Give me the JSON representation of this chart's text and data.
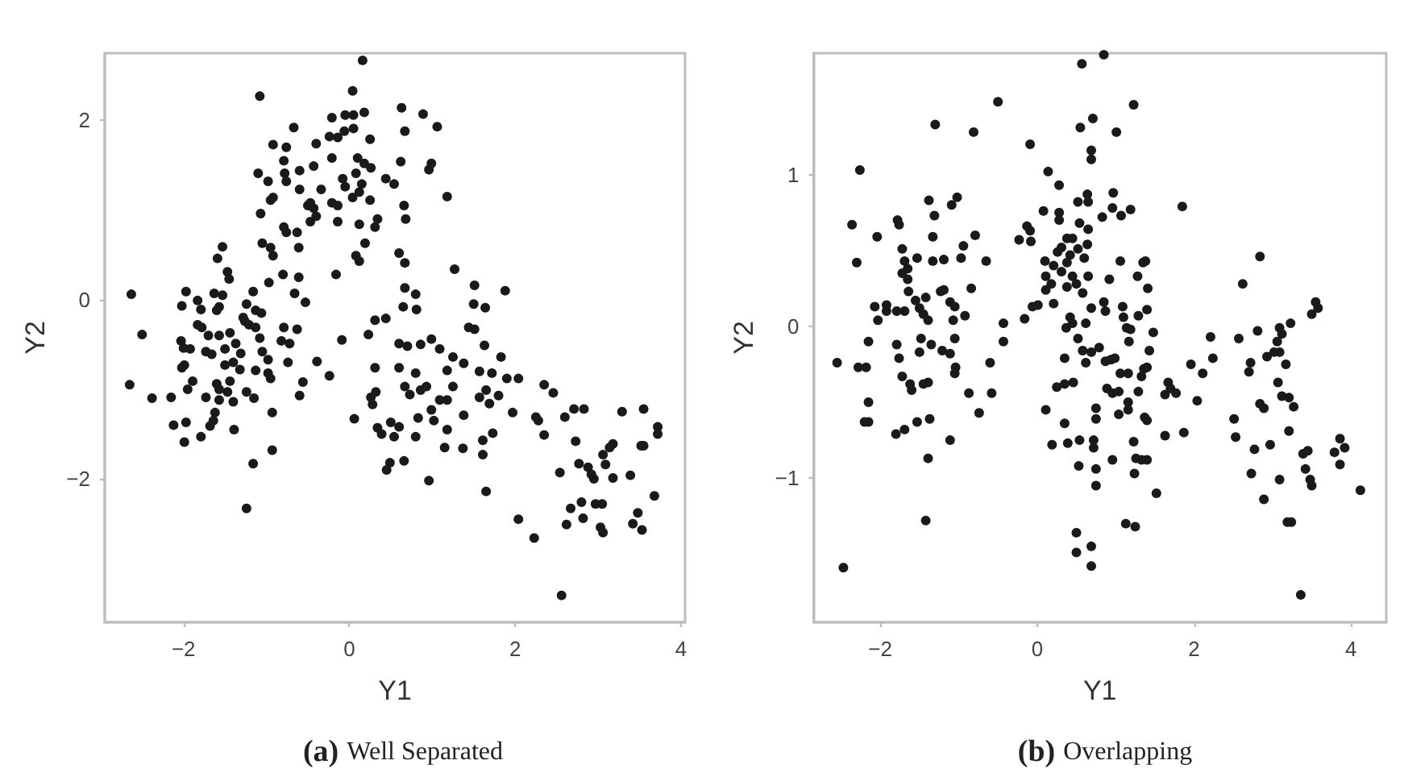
{
  "chart_data": [
    {
      "type": "scatter",
      "title": "(a) Well Separated",
      "xlabel": "Y1",
      "ylabel": "Y2",
      "color": "#1a1a1a",
      "marker": "circle",
      "grid": false,
      "xlim": [
        -2.95,
        4.05
      ],
      "xticks": [
        {
          "value": -2,
          "label": "−2"
        },
        0,
        2,
        4
      ],
      "ylim": [
        -3.6,
        2.75
      ],
      "yticks": [
        {
          "value": -2,
          "label": "−2"
        },
        0,
        2
      ],
      "x": [
        0.16,
        -1.08,
        0.04,
        -0.67,
        -0.92,
        -0.76,
        -0.4,
        -0.21,
        -0.05,
        0.05,
        -0.06,
        0.05,
        -0.24,
        -0.14,
        0.18,
        0.25,
        -1.1,
        -0.98,
        -0.79,
        -0.78,
        -0.76,
        -0.6,
        -0.43,
        -0.21,
        0.1,
        0.18,
        0.26,
        -0.95,
        -0.92,
        -0.6,
        -0.34,
        -0.08,
        -0.05,
        0.08,
        0.15,
        0.12,
        -0.47,
        -0.43,
        -0.5,
        -0.21,
        -0.14,
        0.04,
        0.25,
        0.44,
        0.54,
        -1.07,
        -0.79,
        -0.76,
        -0.63,
        -0.47,
        -0.4,
        -0.14,
        0.12,
        0.34,
        0.31,
        -1.05,
        -0.95,
        -0.92,
        -0.61,
        0.19,
        0.08,
        0.12,
        -0.16,
        -1.53,
        -1.59,
        -1.47,
        -1.45,
        -0.8,
        -0.61,
        -0.97,
        -2.63,
        -1.97,
        -2.02,
        -1.83,
        -1.79,
        -1.63,
        -1.53,
        -1.57,
        -1.6,
        -1.16,
        -0.66,
        -0.53,
        -1.24,
        -1.13,
        -1.06,
        -1.28,
        -1.26,
        -1.83,
        -1.78,
        -2.03,
        -2.0,
        -1.92,
        -1.7,
        -1.57,
        -1.44,
        -1.21,
        -1.13,
        -1.08,
        -0.82,
        -0.79,
        -0.72,
        -0.63,
        -2.5,
        -1.73,
        -1.66,
        -1.5,
        -1.37,
        -1.31,
        -1.05,
        -0.98,
        -1.99,
        -2.02,
        -1.5,
        -1.4,
        -1.32,
        -1.13,
        -0.98,
        -0.95,
        -0.74,
        -0.39,
        -0.24,
        -0.09,
        -2.65,
        -2.38,
        -2.15,
        -1.89,
        -1.95,
        -1.6,
        -1.57,
        -1.44,
        -1.47,
        -1.73,
        -1.57,
        -1.4,
        -1.24,
        -1.15,
        -0.56,
        -0.6,
        -1.62,
        -1.64,
        -0.93,
        -2.12,
        -1.97,
        -1.68,
        -1.39,
        -1.99,
        -1.79,
        0.06,
        -0.93,
        -1.16,
        -1.24,
        0.31,
        0.44,
        0.23,
        0.31,
        0.32,
        0.26,
        0.28,
        0.34,
        0.39,
        0.5,
        0.54,
        0.49,
        0.45,
        0.63,
        0.89,
        1.06,
        0.67,
        0.62,
        0.99,
        0.96,
        1.18,
        0.66,
        0.68,
        0.6,
        0.67,
        1.27,
        0.67,
        0.8,
        0.65,
        0.81,
        1.51,
        1.5,
        1.64,
        1.88,
        1.44,
        1.51,
        0.6,
        0.7,
        0.86,
        0.99,
        1.09,
        1.63,
        1.25,
        1.38,
        1.83,
        0.6,
        0.8,
        1.18,
        1.57,
        1.72,
        1.9,
        2.04,
        2.35,
        2.46,
        0.67,
        0.86,
        0.93,
        1.25,
        0.73,
        1.09,
        1.18,
        1.57,
        1.65,
        0.99,
        1.38,
        1.69,
        1.8,
        0.83,
        1.02,
        1.18,
        1.73,
        1.97,
        2.25,
        2.28,
        2.71,
        2.83,
        2.6,
        3.29,
        3.55,
        3.72,
        3.72,
        0.6,
        0.8,
        1.15,
        1.37,
        1.61,
        1.61,
        0.66,
        2.35,
        2.73,
        3.18,
        3.14,
        3.06,
        3.09,
        2.77,
        2.88,
        2.95,
        2.92,
        2.54,
        3.18,
        3.39,
        3.52,
        3.55,
        0.96,
        1.65,
        3.68,
        2.8,
        2.67,
        2.62,
        2.82,
        2.97,
        3.05,
        3.03,
        3.06,
        3.48,
        3.42,
        3.53,
        2.04,
        2.23,
        2.56
      ],
      "values": [
        2.67,
        2.27,
        2.33,
        1.92,
        1.73,
        1.7,
        1.74,
        2.03,
        2.06,
        2.06,
        1.88,
        1.91,
        1.82,
        1.81,
        2.09,
        1.79,
        1.41,
        1.32,
        1.55,
        1.41,
        1.32,
        1.44,
        1.49,
        1.58,
        1.58,
        1.52,
        1.47,
        1.11,
        1.14,
        1.23,
        1.23,
        1.35,
        1.26,
        1.41,
        1.29,
        1.2,
        1.08,
        1.02,
        1.05,
        1.08,
        1.05,
        1.14,
        1.11,
        1.35,
        1.29,
        0.96,
        0.81,
        0.75,
        0.75,
        0.87,
        0.93,
        0.87,
        0.84,
        0.9,
        0.81,
        0.63,
        0.58,
        0.49,
        0.58,
        0.63,
        0.49,
        0.43,
        0.28,
        0.59,
        0.46,
        0.31,
        0.23,
        0.28,
        0.25,
        0.19,
        0.06,
        0.09,
        -0.07,
        -0.01,
        -0.11,
        0.07,
        0.05,
        -0.08,
        -0.12,
        0.09,
        0.07,
        -0.03,
        -0.05,
        -0.12,
        -0.15,
        -0.2,
        -0.24,
        -0.28,
        -0.31,
        -0.46,
        -0.54,
        -0.55,
        -0.4,
        -0.4,
        -0.37,
        -0.28,
        -0.31,
        -0.43,
        -0.46,
        -0.31,
        -0.49,
        -0.33,
        -0.39,
        -0.58,
        -0.61,
        -0.55,
        -0.49,
        -0.6,
        -0.58,
        -0.67,
        -0.73,
        -0.76,
        -0.73,
        -0.7,
        -0.78,
        -0.79,
        -0.82,
        -0.88,
        -0.7,
        -0.69,
        -0.85,
        -0.45,
        -0.95,
        -1.1,
        -1.09,
        -0.91,
        -1.0,
        -0.94,
        -1.0,
        -0.91,
        -1.03,
        -1.09,
        -1.12,
        -1.14,
        -1.03,
        -1.1,
        -0.92,
        -1.07,
        -1.26,
        -1.35,
        -1.26,
        -1.4,
        -1.37,
        -1.41,
        -1.45,
        -1.59,
        -1.53,
        -1.33,
        -1.68,
        -1.83,
        -2.33,
        -0.23,
        -0.21,
        -0.39,
        -0.76,
        -1.03,
        -1.09,
        -1.17,
        -1.43,
        -1.5,
        -1.37,
        -1.53,
        -1.82,
        -1.9,
        2.14,
        2.07,
        1.93,
        1.88,
        1.54,
        1.52,
        1.45,
        1.15,
        1.05,
        0.9,
        0.52,
        0.41,
        0.34,
        0.13,
        0.06,
        -0.08,
        -0.11,
        0.16,
        -0.05,
        -0.09,
        0.1,
        -0.31,
        -0.33,
        -0.49,
        -0.52,
        -0.5,
        -0.44,
        -0.55,
        -0.51,
        -0.64,
        -0.71,
        -0.64,
        -0.76,
        -0.82,
        -0.79,
        -0.8,
        -0.82,
        -0.88,
        -0.88,
        -0.95,
        -1.04,
        -0.97,
        -1.01,
        -0.97,
        -0.97,
        -1.06,
        -1.12,
        -1.12,
        -1.09,
        -1.01,
        -1.23,
        -1.29,
        -1.16,
        -1.07,
        -1.32,
        -1.35,
        -1.45,
        -1.49,
        -1.26,
        -1.31,
        -1.35,
        -1.22,
        -1.22,
        -1.31,
        -1.25,
        -1.22,
        -1.42,
        -1.5,
        -1.42,
        -1.53,
        -1.65,
        -1.66,
        -1.57,
        -1.73,
        -1.8,
        -1.51,
        -1.58,
        -1.61,
        -1.65,
        -1.73,
        -1.84,
        -1.83,
        -1.87,
        -2.0,
        -1.95,
        -1.93,
        -1.99,
        -1.96,
        -1.63,
        -1.63,
        -2.02,
        -2.14,
        -2.19,
        -2.26,
        -2.33,
        -2.51,
        -2.44,
        -2.28,
        -2.28,
        -2.54,
        -2.6,
        -2.38,
        -2.5,
        -2.57,
        -2.45,
        -2.66,
        -3.3
      ]
    },
    {
      "type": "scatter",
      "title": "(b) Overlapping",
      "xlabel": "Y1",
      "ylabel": "Y2",
      "color": "#1a1a1a",
      "marker": "circle",
      "grid": false,
      "xlim": [
        -2.85,
        4.45
      ],
      "xticks": [
        {
          "value": -2,
          "label": "−2"
        },
        0,
        2,
        4
      ],
      "ylim": [
        -1.95,
        1.8
      ],
      "yticks": [
        {
          "value": -1,
          "label": "−1"
        },
        0,
        1
      ],
      "x": [
        0.57,
        -0.5,
        -1.3,
        -0.81,
        0.71,
        -0.09,
        0.55,
        0.69,
        0.69,
        -2.26,
        0.14,
        0.28,
        -1.38,
        -1.02,
        -1.09,
        0.64,
        0.52,
        0.65,
        -2.36,
        -1.78,
        -1.76,
        -1.31,
        0.08,
        0.28,
        0.28,
        -2.04,
        -1.33,
        -0.79,
        -0.13,
        -0.09,
        0.54,
        0.65,
        -2.3,
        -0.23,
        -0.08,
        -1.72,
        -1.69,
        -1.53,
        -1.33,
        -1.19,
        -0.97,
        -0.94,
        -0.65,
        0.38,
        0.45,
        0.64,
        0.26,
        0.31,
        0.42,
        0.52,
        0.1,
        0.21,
        0.38,
        0.6,
        -1.65,
        -1.72,
        -1.65,
        0.11,
        0.18,
        0.31,
        0.45,
        0.5,
        -1.64,
        -1.23,
        -1.19,
        -0.84,
        0.11,
        0.38,
        0.58,
        0.65,
        -2.07,
        -1.92,
        -1.79,
        -1.69,
        -1.55,
        -1.42,
        -1.5,
        -1.45,
        -1.39,
        -1.11,
        -1.05,
        -2.03,
        -1.92,
        -1.07,
        -0.92,
        -0.43,
        -0.16,
        -0.06,
        0.01,
        0.21,
        0.42,
        0.45,
        0.62,
        0.69,
        0.37,
        -2.15,
        -1.79,
        -1.76,
        -1.48,
        -1.5,
        -1.35,
        -1.21,
        -1.11,
        -1.05,
        -1.04,
        -1.05,
        -0.43,
        0.52,
        0.58,
        0.62,
        0.69,
        -2.55,
        -2.28,
        -2.18,
        -0.6,
        0.35,
        -1.72,
        -1.62,
        -1.6,
        -1.45,
        -1.39,
        0.25,
        0.35,
        0.46,
        -0.87,
        -0.58,
        -2.15,
        -0.74,
        0.11,
        -2.2,
        -2.15,
        -1.8,
        -1.69,
        -1.53,
        -1.37,
        0.35,
        0.75,
        0.75,
        -1.11,
        0.19,
        0.39,
        0.54,
        0.72,
        0.72,
        -1.39,
        0.53,
        0.75,
        0.75,
        -1.42,
        0.5,
        0.69,
        0.5,
        0.69,
        -2.47,
        0.85,
        1.23,
        1.01,
        0.97,
        0.96,
        1.07,
        1.19,
        0.83,
        1.85,
        2.84,
        1.06,
        0.92,
        1.28,
        1.35,
        1.38,
        1.41,
        2.62,
        0.85,
        0.87,
        1.09,
        1.1,
        1.19,
        1.14,
        1.29,
        1.4,
        1.48,
        1.17,
        3.55,
        3.58,
        3.5,
        3.23,
        3.09,
        3.12,
        3.06,
        2.81,
        2.57,
        2.21,
        0.79,
        0.87,
        0.94,
        0.99,
        1.43,
        1.96,
        2.11,
        2.24,
        2.72,
        2.7,
        2.93,
        3.02,
        3.09,
        3.17,
        3.07,
        1.06,
        1.16,
        1.33,
        1.36,
        1.4,
        0.89,
        0.96,
        1.04,
        1.29,
        1.67,
        1.7,
        1.77,
        1.63,
        2.04,
        1.16,
        1.16,
        1.04,
        1.37,
        1.4,
        3.12,
        3.21,
        3.27,
        2.84,
        2.89,
        2.51,
        2.53,
        1.63,
        1.87,
        3.21,
        1.23,
        1.26,
        1.33,
        1.4,
        0.96,
        2.77,
        2.97,
        3.39,
        3.45,
        3.86,
        3.92,
        3.79,
        3.86,
        1.24,
        2.73,
        2.89,
        3.09,
        3.42,
        3.48,
        3.5,
        4.12,
        1.52,
        3.19,
        3.24,
        1.13,
        1.25,
        3.36
      ],
      "values": [
        1.73,
        1.48,
        1.33,
        1.28,
        1.37,
        1.2,
        1.31,
        1.16,
        1.1,
        1.03,
        1.02,
        0.93,
        0.83,
        0.85,
        0.8,
        0.87,
        0.82,
        0.82,
        0.67,
        0.7,
        0.67,
        0.73,
        0.76,
        0.75,
        0.7,
        0.59,
        0.59,
        0.6,
        0.66,
        0.63,
        0.68,
        0.64,
        0.42,
        0.57,
        0.56,
        0.51,
        0.43,
        0.45,
        0.43,
        0.44,
        0.45,
        0.53,
        0.43,
        0.58,
        0.58,
        0.54,
        0.49,
        0.52,
        0.47,
        0.51,
        0.43,
        0.4,
        0.42,
        0.45,
        0.38,
        0.35,
        0.31,
        0.33,
        0.28,
        0.36,
        0.33,
        0.28,
        0.23,
        0.23,
        0.24,
        0.25,
        0.24,
        0.26,
        0.22,
        0.33,
        0.13,
        0.14,
        0.1,
        0.1,
        0.17,
        0.19,
        0.12,
        0.08,
        0.04,
        0.16,
        0.13,
        0.04,
        0.1,
        0.04,
        0.07,
        0.02,
        0.05,
        0.13,
        0.14,
        0.15,
        0.06,
        0.02,
        0.02,
        0.12,
        -0.01,
        -0.1,
        -0.12,
        -0.21,
        -0.08,
        -0.17,
        -0.12,
        -0.16,
        -0.18,
        -0.08,
        -0.27,
        -0.31,
        -0.1,
        -0.08,
        -0.16,
        -0.24,
        -0.17,
        -0.24,
        -0.27,
        -0.27,
        -0.24,
        -0.21,
        -0.33,
        -0.38,
        -0.42,
        -0.38,
        -0.37,
        -0.4,
        -0.38,
        -0.37,
        -0.44,
        -0.44,
        -0.5,
        -0.57,
        -0.55,
        -0.63,
        -0.63,
        -0.71,
        -0.68,
        -0.63,
        -0.61,
        -0.64,
        -0.54,
        -0.61,
        -0.75,
        -0.78,
        -0.77,
        -0.75,
        -0.75,
        -0.8,
        -0.87,
        -0.92,
        -0.94,
        -1.05,
        -1.28,
        -1.36,
        -1.45,
        -1.49,
        -1.58,
        -1.59,
        1.79,
        1.46,
        1.28,
        0.88,
        0.78,
        0.73,
        0.77,
        0.72,
        0.79,
        0.46,
        0.43,
        0.31,
        0.33,
        0.42,
        0.43,
        0.25,
        0.28,
        0.16,
        0.1,
        0.13,
        0.06,
        -0.02,
        -0.01,
        0.07,
        0.11,
        -0.04,
        -0.1,
        0.16,
        0.12,
        0.08,
        0.02,
        -0.01,
        -0.05,
        -0.1,
        -0.03,
        -0.08,
        -0.07,
        -0.14,
        -0.23,
        -0.22,
        -0.21,
        -0.16,
        -0.25,
        -0.31,
        -0.21,
        -0.24,
        -0.3,
        -0.2,
        -0.17,
        -0.17,
        -0.25,
        -0.37,
        -0.31,
        -0.31,
        -0.33,
        -0.28,
        -0.27,
        -0.41,
        -0.44,
        -0.43,
        -0.43,
        -0.37,
        -0.41,
        -0.44,
        -0.45,
        -0.49,
        -0.5,
        -0.55,
        -0.58,
        -0.6,
        -0.62,
        -0.46,
        -0.47,
        -0.53,
        -0.51,
        -0.54,
        -0.61,
        -0.73,
        -0.72,
        -0.7,
        -0.69,
        -0.76,
        -0.87,
        -0.88,
        -0.88,
        -0.88,
        -0.81,
        -0.78,
        -0.84,
        -0.82,
        -0.74,
        -0.8,
        -0.83,
        -0.91,
        -0.97,
        -0.97,
        -1.14,
        -1.01,
        -0.94,
        -1.01,
        -1.05,
        -1.08,
        -1.1,
        -1.29,
        -1.29,
        -1.3,
        -1.32,
        -1.77
      ]
    }
  ]
}
